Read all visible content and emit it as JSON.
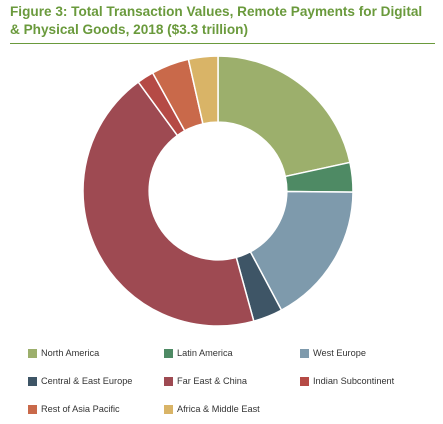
{
  "title": "Figure 3: Total Transaction Values, Remote Payments for Digital & Physical Goods, 2018 ($3.3 trillion)",
  "chart_data": {
    "type": "pie",
    "title": "Figure 3: Total Transaction Values, Remote Payments for Digital & Physical Goods, 2018 ($3.3 trillion)",
    "inner_radius_ratio": 0.51,
    "start_angle_deg": 0,
    "direction": "clockwise",
    "legend_position": "bottom",
    "categories": [
      "North America",
      "Latin America",
      "West Europe",
      "Central & East Europe",
      "Far East & China",
      "Indian Subcontinent",
      "Rest of Asia Pacific",
      "Africa & Middle East"
    ],
    "values": [
      21.5,
      3.5,
      17.0,
      3.5,
      44.0,
      2.0,
      4.5,
      3.5
    ],
    "units": "% of total transaction value",
    "colors": [
      "#9caf6c",
      "#4e8a64",
      "#7e9aac",
      "#3e5566",
      "#9e4a52",
      "#b54a45",
      "#c9694a",
      "#d9b467"
    ]
  }
}
